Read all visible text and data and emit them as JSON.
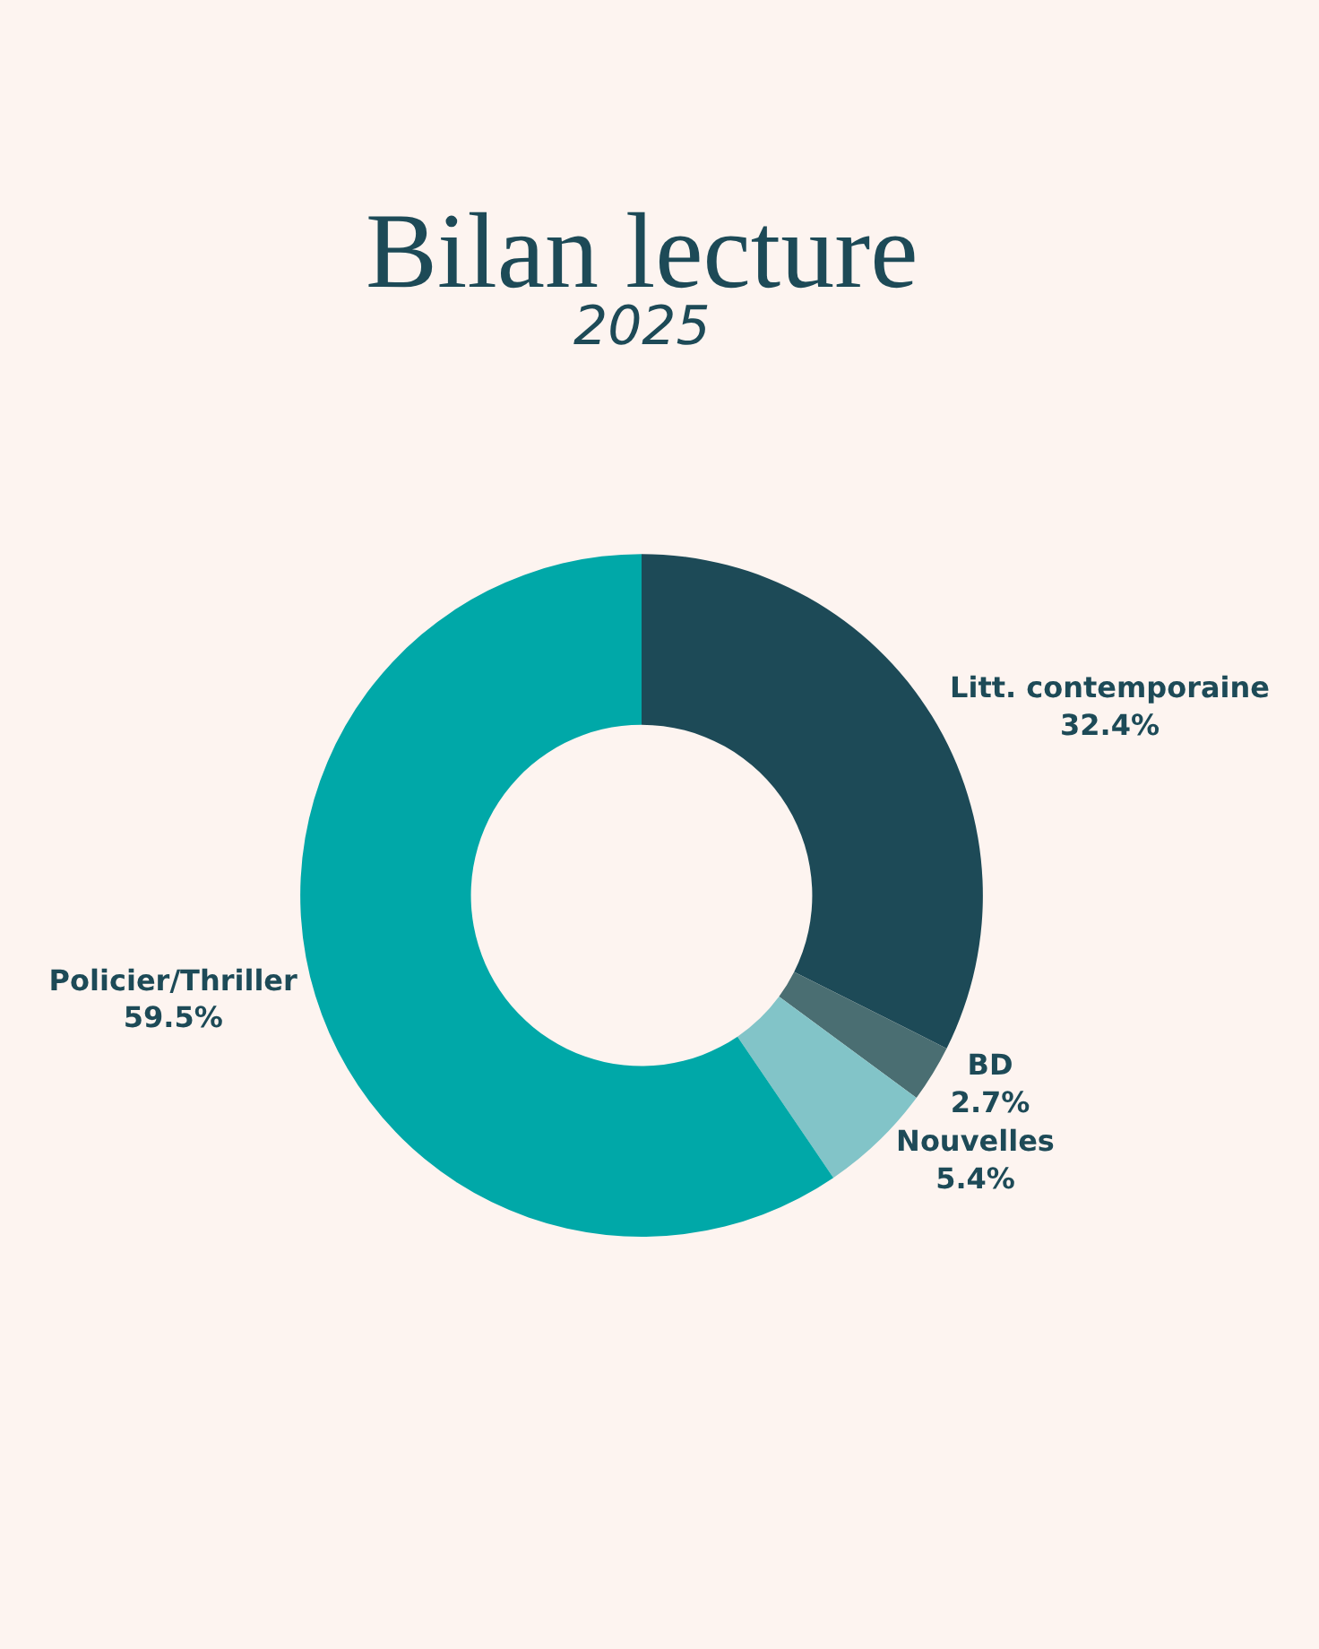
{
  "chart_data": {
    "type": "donut",
    "title": "Bilan lecture",
    "subtitle": "2025",
    "categories": [
      "Litt. contemporaine",
      "BD",
      "Nouvelles",
      "Policier/Thriller"
    ],
    "values": [
      32.4,
      2.7,
      5.4,
      59.5
    ],
    "colors": [
      "#1d4a57",
      "#4a6e72",
      "#82c4c8",
      "#00a8a8"
    ],
    "value_labels": [
      "32.4%",
      "2.7%",
      "5.4%",
      "59.5%"
    ],
    "legend": false
  }
}
